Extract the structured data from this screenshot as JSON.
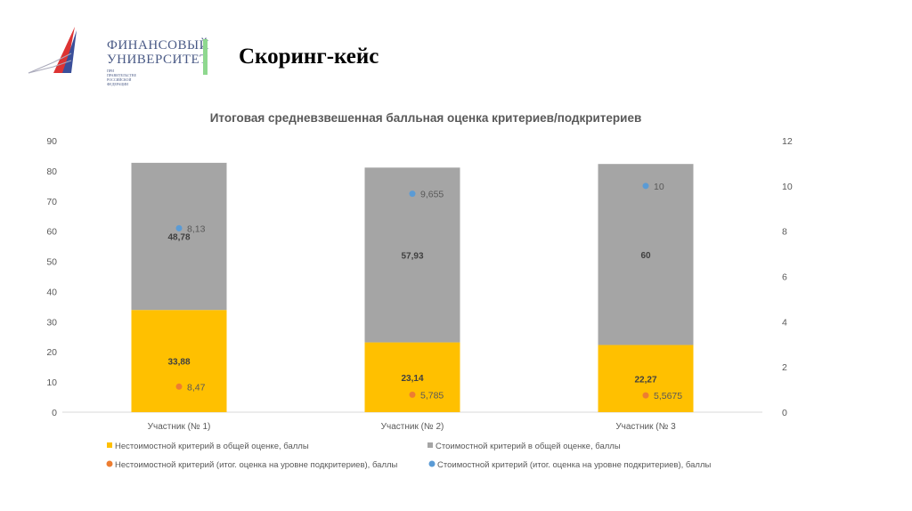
{
  "header": {
    "logo_line1": "ФИНАНСОВЫЙ",
    "logo_line2": "УНИВЕРСИТЕТ",
    "logo_line3": "ПРИ ПРАВИТЕЛЬСТВЕ РОССИЙСКОЙ ФЕДЕРАЦИИ",
    "title": "Скоринг-кейс"
  },
  "colors": {
    "yellow": "#ffc000",
    "gray": "#a5a5a5",
    "orange": "#ed7d31",
    "blue": "#5b9bd5",
    "accent": "#8fd88f"
  },
  "chart_data": {
    "type": "bar",
    "stacked": true,
    "title": "Итоговая средневзвешенная балльная оценка критериев/подкритериев",
    "categories": [
      "Участник (№ 1)",
      "Участник (№ 2)",
      "Участник (№ 3"
    ],
    "y_left": {
      "range": [
        0,
        90
      ],
      "ticks": [
        0,
        10,
        20,
        30,
        40,
        50,
        60,
        70,
        80,
        90
      ]
    },
    "y_right": {
      "range": [
        0,
        12
      ],
      "ticks": [
        0,
        2,
        4,
        6,
        8,
        10,
        12
      ]
    },
    "grid": false,
    "legend_placement": "bottom",
    "series": [
      {
        "name": "Нестоимостной критерий в общей оценке, баллы",
        "kind": "bar",
        "axis": "left",
        "color": "#ffc000",
        "values": [
          33.88,
          23.14,
          22.27
        ],
        "labels": [
          "33,88",
          "23,14",
          "22,27"
        ]
      },
      {
        "name": "Стоимостной критерий в общей оценке, баллы",
        "kind": "bar",
        "axis": "left",
        "color": "#a5a5a5",
        "values": [
          48.78,
          57.93,
          60
        ],
        "labels": [
          "48,78",
          "57,93",
          "60"
        ]
      },
      {
        "name": "Нестоимостной критерий (итог. оценка на уровне подкритериев), баллы",
        "kind": "point",
        "axis": "left",
        "color": "#ed7d31",
        "values": [
          8.47,
          5.785,
          5.5675
        ],
        "labels": [
          "8,47",
          "5,785",
          "5,5675"
        ]
      },
      {
        "name": "Стоимостной критерий (итог. оценка на уровне подкритериев), баллы",
        "kind": "point",
        "axis": "right",
        "color": "#5b9bd5",
        "values": [
          8.13,
          9.655,
          10
        ],
        "labels": [
          "8,13",
          "9,655",
          "10"
        ]
      }
    ]
  }
}
